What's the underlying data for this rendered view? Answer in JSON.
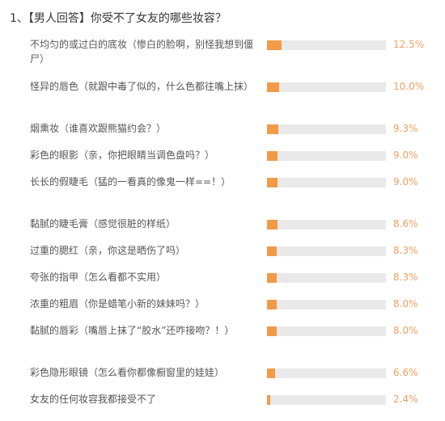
{
  "title": "1、【男人回答】你受不了女友的哪些妆容？",
  "chart_data": {
    "type": "bar",
    "orientation": "horizontal",
    "title": "1、【男人回答】你受不了女友的哪些妆容？",
    "bar_color": "#f39a48",
    "track_color": "#e9e9e9",
    "categories": [
      "不均匀的或过白的底妆（惨白的脸啊，别怪我想到僵尸）",
      "怪异的唇色（就跟中毒了似的，什么色都往嘴上抹）",
      "烟熏妆（谁喜欢跟熊猫约会？）",
      "彩色的眼影（亲，你把眼睛当调色盘吗？）",
      "长长的假睫毛（猛的一看真的像鬼一样==！）",
      "黏腻的睫毛膏（感觉很脏的样纸）",
      "过重的腮红（亲，你这是晒伤了吗）",
      "夸张的指甲（怎么看都不实用）",
      "浓重的粗眉（你是蜡笔小新的妹妹吗？）",
      "黏腻的唇彩（嘴唇上抹了“胶水”还咋接吻？！）",
      "彩色隐形眼镜（怎么看你都像橱窗里的娃娃）",
      "女友的任何妆容我都接受不了"
    ],
    "values": [
      12.5,
      10.0,
      9.3,
      9.0,
      9.0,
      8.6,
      8.3,
      8.3,
      8.0,
      8.0,
      6.6,
      2.4
    ],
    "labels": [
      "12.5%",
      "10.0%",
      "9.3%",
      "9.0%",
      "9.0%",
      "8.6%",
      "8.3%",
      "8.3%",
      "8.0%",
      "8.0%",
      "6.6%",
      "2.4%"
    ],
    "xlim": [
      0,
      100
    ]
  }
}
